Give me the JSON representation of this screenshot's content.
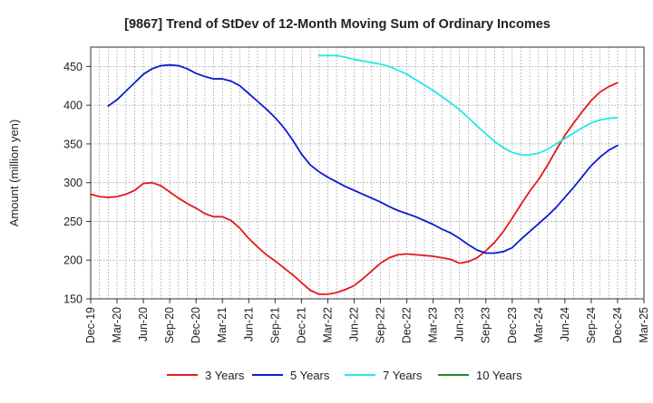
{
  "chart_data": {
    "type": "line",
    "title": "[9867]  Trend of StDev of 12-Month Moving Sum of Ordinary Incomes",
    "xlabel": "",
    "ylabel": "Amount (million yen)",
    "ylim": [
      150,
      475
    ],
    "yticks": [
      150,
      200,
      250,
      300,
      350,
      400,
      450
    ],
    "x_range": [
      "2019-12",
      "2025-03"
    ],
    "xticks": [
      "Dec-19",
      "Mar-20",
      "Jun-20",
      "Sep-20",
      "Dec-20",
      "Mar-21",
      "Jun-21",
      "Sep-21",
      "Dec-21",
      "Mar-22",
      "Jun-22",
      "Sep-22",
      "Dec-22",
      "Mar-23",
      "Jun-23",
      "Sep-23",
      "Dec-23",
      "Mar-24",
      "Jun-24",
      "Sep-24",
      "Dec-24",
      "Mar-25"
    ],
    "grid": true,
    "legend_position": "bottom",
    "series": [
      {
        "name": "3 Years",
        "color": "#e41a1c",
        "points": [
          [
            "2019-12",
            285
          ],
          [
            "2020-01",
            282
          ],
          [
            "2020-02",
            281
          ],
          [
            "2020-03",
            282
          ],
          [
            "2020-04",
            285
          ],
          [
            "2020-05",
            290
          ],
          [
            "2020-06",
            299
          ],
          [
            "2020-07",
            300
          ],
          [
            "2020-08",
            296
          ],
          [
            "2020-09",
            288
          ],
          [
            "2020-10",
            280
          ],
          [
            "2020-11",
            273
          ],
          [
            "2020-12",
            267
          ],
          [
            "2021-01",
            260
          ],
          [
            "2021-02",
            256
          ],
          [
            "2021-03",
            256
          ],
          [
            "2021-04",
            251
          ],
          [
            "2021-05",
            241
          ],
          [
            "2021-06",
            228
          ],
          [
            "2021-07",
            217
          ],
          [
            "2021-08",
            207
          ],
          [
            "2021-09",
            199
          ],
          [
            "2021-10",
            190
          ],
          [
            "2021-11",
            181
          ],
          [
            "2021-12",
            171
          ],
          [
            "2022-01",
            161
          ],
          [
            "2022-02",
            156
          ],
          [
            "2022-03",
            156
          ],
          [
            "2022-04",
            158
          ],
          [
            "2022-05",
            162
          ],
          [
            "2022-06",
            167
          ],
          [
            "2022-07",
            176
          ],
          [
            "2022-08",
            186
          ],
          [
            "2022-09",
            196
          ],
          [
            "2022-10",
            203
          ],
          [
            "2022-11",
            207
          ],
          [
            "2022-12",
            208
          ],
          [
            "2023-01",
            207
          ],
          [
            "2023-02",
            206
          ],
          [
            "2023-03",
            205
          ],
          [
            "2023-04",
            203
          ],
          [
            "2023-05",
            201
          ],
          [
            "2023-06",
            196
          ],
          [
            "2023-07",
            198
          ],
          [
            "2023-08",
            203
          ],
          [
            "2023-09",
            212
          ],
          [
            "2023-10",
            223
          ],
          [
            "2023-11",
            237
          ],
          [
            "2023-12",
            254
          ],
          [
            "2024-01",
            272
          ],
          [
            "2024-02",
            289
          ],
          [
            "2024-03",
            304
          ],
          [
            "2024-04",
            322
          ],
          [
            "2024-05",
            342
          ],
          [
            "2024-06",
            361
          ],
          [
            "2024-07",
            377
          ],
          [
            "2024-08",
            392
          ],
          [
            "2024-09",
            406
          ],
          [
            "2024-10",
            417
          ],
          [
            "2024-11",
            424
          ],
          [
            "2024-12",
            429
          ]
        ]
      },
      {
        "name": "5 Years",
        "color": "#0a1ccf",
        "points": [
          [
            "2020-02",
            399
          ],
          [
            "2020-03",
            407
          ],
          [
            "2020-04",
            418
          ],
          [
            "2020-05",
            429
          ],
          [
            "2020-06",
            440
          ],
          [
            "2020-07",
            447
          ],
          [
            "2020-08",
            451
          ],
          [
            "2020-09",
            452
          ],
          [
            "2020-10",
            451
          ],
          [
            "2020-11",
            447
          ],
          [
            "2020-12",
            441
          ],
          [
            "2021-01",
            437
          ],
          [
            "2021-02",
            434
          ],
          [
            "2021-03",
            434
          ],
          [
            "2021-04",
            431
          ],
          [
            "2021-05",
            425
          ],
          [
            "2021-06",
            415
          ],
          [
            "2021-07",
            405
          ],
          [
            "2021-08",
            395
          ],
          [
            "2021-09",
            384
          ],
          [
            "2021-10",
            371
          ],
          [
            "2021-11",
            355
          ],
          [
            "2021-12",
            337
          ],
          [
            "2022-01",
            323
          ],
          [
            "2022-02",
            314
          ],
          [
            "2022-03",
            307
          ],
          [
            "2022-04",
            301
          ],
          [
            "2022-05",
            295
          ],
          [
            "2022-06",
            290
          ],
          [
            "2022-07",
            285
          ],
          [
            "2022-08",
            280
          ],
          [
            "2022-09",
            275
          ],
          [
            "2022-10",
            269
          ],
          [
            "2022-11",
            264
          ],
          [
            "2022-12",
            260
          ],
          [
            "2023-01",
            256
          ],
          [
            "2023-02",
            251
          ],
          [
            "2023-03",
            246
          ],
          [
            "2023-04",
            240
          ],
          [
            "2023-05",
            235
          ],
          [
            "2023-06",
            228
          ],
          [
            "2023-07",
            220
          ],
          [
            "2023-08",
            213
          ],
          [
            "2023-09",
            209
          ],
          [
            "2023-10",
            209
          ],
          [
            "2023-11",
            211
          ],
          [
            "2023-12",
            216
          ],
          [
            "2024-01",
            227
          ],
          [
            "2024-02",
            237
          ],
          [
            "2024-03",
            247
          ],
          [
            "2024-04",
            257
          ],
          [
            "2024-05",
            268
          ],
          [
            "2024-06",
            281
          ],
          [
            "2024-07",
            294
          ],
          [
            "2024-08",
            308
          ],
          [
            "2024-09",
            322
          ],
          [
            "2024-10",
            333
          ],
          [
            "2024-11",
            342
          ],
          [
            "2024-12",
            348
          ]
        ]
      },
      {
        "name": "7 Years",
        "color": "#22e8e8",
        "points": [
          [
            "2022-02",
            464
          ],
          [
            "2022-03",
            464
          ],
          [
            "2022-04",
            464
          ],
          [
            "2022-05",
            462
          ],
          [
            "2022-06",
            459
          ],
          [
            "2022-07",
            457
          ],
          [
            "2022-08",
            455
          ],
          [
            "2022-09",
            453
          ],
          [
            "2022-10",
            450
          ],
          [
            "2022-11",
            445
          ],
          [
            "2022-12",
            440
          ],
          [
            "2023-01",
            433
          ],
          [
            "2023-02",
            426
          ],
          [
            "2023-03",
            419
          ],
          [
            "2023-04",
            411
          ],
          [
            "2023-05",
            403
          ],
          [
            "2023-06",
            394
          ],
          [
            "2023-07",
            384
          ],
          [
            "2023-08",
            373
          ],
          [
            "2023-09",
            363
          ],
          [
            "2023-10",
            353
          ],
          [
            "2023-11",
            345
          ],
          [
            "2023-12",
            339
          ],
          [
            "2024-01",
            336
          ],
          [
            "2024-02",
            336
          ],
          [
            "2024-03",
            338
          ],
          [
            "2024-04",
            343
          ],
          [
            "2024-05",
            350
          ],
          [
            "2024-06",
            357
          ],
          [
            "2024-07",
            364
          ],
          [
            "2024-08",
            371
          ],
          [
            "2024-09",
            377
          ],
          [
            "2024-10",
            381
          ],
          [
            "2024-11",
            383
          ],
          [
            "2024-12",
            384
          ]
        ]
      },
      {
        "name": "10 Years",
        "color": "#228b22",
        "points": []
      }
    ]
  }
}
